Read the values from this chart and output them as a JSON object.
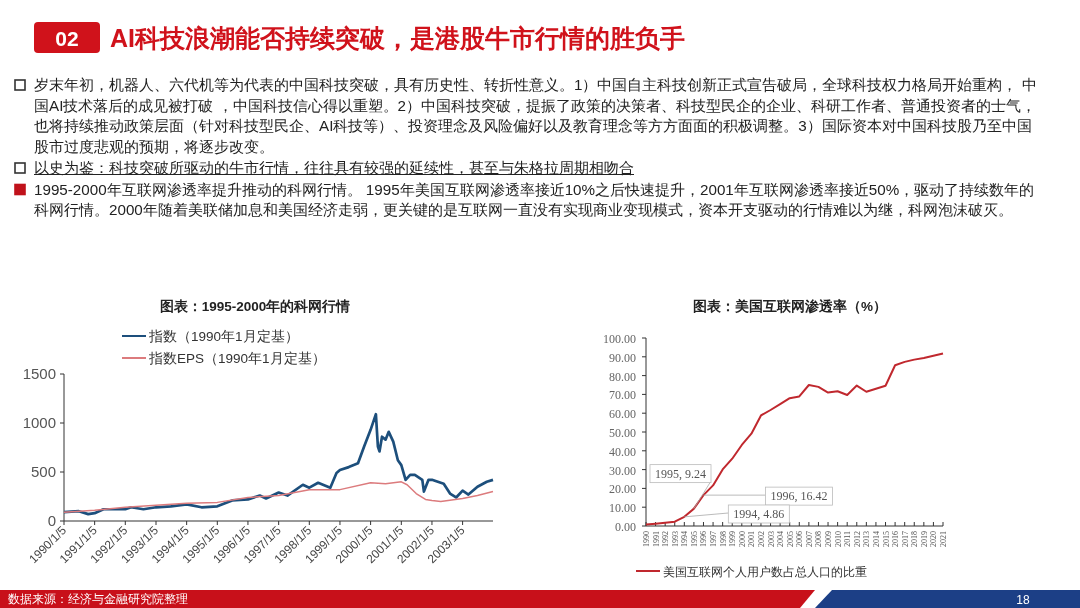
{
  "chart_data": [
    {
      "type": "other",
      "title": "AI科技浪潮能否持续突破，是港股牛市行情的胜负手",
      "annotations": [
        "02",
        "岁末年初，机器人、六代机等为代表的中国科技突破，具有历史性、转折性意义。1）中国自主科技创新正式宣告破局，全球科技权力格局开始重构， 中国AI技术落后的成见被打破 ，中国科技信心得以重塑。2）中国科技突破，提振了政策的决策者、科技型民企的企业、科研工作者、普通投资者的士气，也将持续推动政策层面（针对科技型民企、AI科技等）、投资理念及风险偏好以及教育理念等方方面面的积极调整。3）国际资本对中国科技股乃至中国股市过度悲观的预期，将逐步改变。",
        "以史为鉴：科技突破所驱动的牛市行情，往往具有较强的延续性，甚至与朱格拉周期相吻合",
        "1995-2000年互联网渗透率提升推动的科网行情。 1995年美国互联网渗透率接近10%之后快速提升，2001年互联网渗透率接近50%，驱动了持续数年的科网行情。2000年随着美联储加息和美国经济走弱，更关键的是互联网一直没有实现商业变现模式，资本开支驱动的行情难以为继，科网泡沫破灭。",
        "18"
      ]
    },
    {
      "type": "line",
      "title": "图表：1995-2000年的科网行情",
      "legend": "top",
      "xlim": [
        "1990-01-05",
        "2004-01-02"
      ],
      "xticks": [
        {
          "value": "1990-01-05",
          "label": "1990/1/5"
        },
        {
          "value": "1991-01-05",
          "label": "1991/1/5"
        },
        {
          "value": "1992-01-05",
          "label": "1992/1/5"
        },
        {
          "value": "1993-01-05",
          "label": "1993/1/5"
        },
        {
          "value": "1994-01-05",
          "label": "1994/1/5"
        },
        {
          "value": "1995-01-05",
          "label": "1995/1/5"
        },
        {
          "value": "1996-01-05",
          "label": "1996/1/5"
        },
        {
          "value": "1997-01-05",
          "label": "1997/1/5"
        },
        {
          "value": "1998-01-05",
          "label": "1998/1/5"
        },
        {
          "value": "1999-01-05",
          "label": "1999/1/5"
        },
        {
          "value": "2000-01-05",
          "label": "2000/1/5"
        },
        {
          "value": "2001-01-05",
          "label": "2001/1/5"
        },
        {
          "value": "2002-01-05",
          "label": "2002/1/5"
        },
        {
          "value": "2003-01-05",
          "label": "2003/1/5"
        }
      ],
      "ylim": [
        0,
        1500
      ],
      "yticks": [
        0,
        500,
        1000,
        1500
      ],
      "series": [
        {
          "name": "指数（1990年1月定基）",
          "color": "#1d4f7c",
          "x": [
            "1990-01-05",
            "1990-07-01",
            "1990-10-20",
            "1991-01-05",
            "1991-04-20",
            "1992-01-05",
            "1992-03-15",
            "1992-08-08",
            "1993-01-05",
            "1993-07-01",
            "1994-01-05",
            "1994-07-01",
            "1995-01-05",
            "1995-07-01",
            "1996-01-05",
            "1996-05-25",
            "1996-08-08",
            "1997-01-05",
            "1997-04-20",
            "1997-10-20",
            "1998-01-05",
            "1998-04-20",
            "1998-09-12",
            "1998-11-25",
            "1999-01-05",
            "1999-04-20",
            "1999-08-08",
            "1999-10-20",
            "2000-01-05",
            "2000-03-08",
            "2000-04-01",
            "2000-04-20",
            "2000-05-20",
            "2000-07-01",
            "2000-08-08",
            "2000-10-01",
            "2000-11-25",
            "2001-01-05",
            "2001-02-25",
            "2001-04-20",
            "2001-06-15",
            "2001-09-12",
            "2001-10-01",
            "2001-11-25",
            "2002-01-05",
            "2002-05-25",
            "2002-08-08",
            "2002-10-20",
            "2003-01-05",
            "2003-03-15",
            "2003-07-01",
            "2003-10-20",
            "2004-01-02"
          ],
          "values": [
            90,
            100,
            70,
            80,
            120,
            120,
            140,
            120,
            140,
            150,
            170,
            140,
            150,
            210,
            220,
            260,
            230,
            290,
            260,
            370,
            340,
            390,
            340,
            490,
            520,
            550,
            590,
            760,
            930,
            1090,
            760,
            710,
            860,
            830,
            910,
            810,
            620,
            570,
            420,
            470,
            470,
            420,
            300,
            420,
            420,
            380,
            280,
            240,
            310,
            270,
            350,
            400,
            420
          ]
        },
        {
          "name": "指数EPS（1990年1月定基）",
          "color": "#dc7b7d",
          "x": [
            "1990-01-05",
            "1991-01-05",
            "1992-01-05",
            "1993-01-05",
            "1994-01-05",
            "1995-01-05",
            "1996-01-05",
            "1997-01-05",
            "1998-01-05",
            "1999-01-05",
            "2000-01-05",
            "2000-07-01",
            "2001-01-05",
            "2001-03-15",
            "2001-07-01",
            "2001-10-20",
            "2002-01-05",
            "2002-04-20",
            "2003-01-05",
            "2003-07-01",
            "2004-01-02"
          ],
          "values": [
            90,
            110,
            140,
            160,
            180,
            190,
            240,
            260,
            320,
            320,
            390,
            380,
            400,
            370,
            280,
            220,
            210,
            200,
            230,
            260,
            300
          ]
        }
      ],
      "annotations": [
        "数据来源：经济与金融研究院整理"
      ]
    },
    {
      "type": "line",
      "title": "图表：美国互联网渗透率（%）",
      "legend": "bottom",
      "categories": [
        "1990",
        "1991",
        "1992",
        "1993",
        "1994",
        "1995",
        "1996",
        "1997",
        "1998",
        "1999",
        "2000",
        "2001",
        "2002",
        "2003",
        "2004",
        "2005",
        "2006",
        "2007",
        "2008",
        "2009",
        "2010",
        "2011",
        "2012",
        "2013",
        "2014",
        "2015",
        "2016",
        "2017",
        "2018",
        "2019",
        "2020",
        "2021"
      ],
      "ylim": [
        0,
        100
      ],
      "yticks": [
        {
          "value": 0,
          "label": "0.00"
        },
        {
          "value": 10,
          "label": "10.00"
        },
        {
          "value": 20,
          "label": "20.00"
        },
        {
          "value": 30,
          "label": "30.00"
        },
        {
          "value": 40,
          "label": "40.00"
        },
        {
          "value": 50,
          "label": "50.00"
        },
        {
          "value": 60,
          "label": "60.00"
        },
        {
          "value": 70,
          "label": "70.00"
        },
        {
          "value": 80,
          "label": "80.00"
        },
        {
          "value": 90,
          "label": "90.00"
        },
        {
          "value": 100,
          "label": "100.00"
        }
      ],
      "series": [
        {
          "name": "美国互联网个人用户数占总人口的比重",
          "color": "#c0282e",
          "values": [
            0.8,
            1.2,
            1.7,
            2.3,
            4.86,
            9.24,
            16.42,
            21.6,
            30.1,
            35.8,
            43.1,
            49.1,
            58.8,
            61.7,
            64.8,
            68,
            68.9,
            75,
            74,
            71,
            71.7,
            69.7,
            74.7,
            71.4,
            73,
            74.6,
            85.5,
            87.3,
            88.5,
            89.4,
            90.6,
            91.8
          ]
        }
      ],
      "annotations": [
        {
          "text": "1995, 9.24",
          "x": "1995",
          "y": 9.24
        },
        {
          "text": "1996, 16.42",
          "x": "1996",
          "y": 16.42
        },
        {
          "text": "1994, 4.86",
          "x": "1994",
          "y": 4.86
        }
      ]
    }
  ]
}
